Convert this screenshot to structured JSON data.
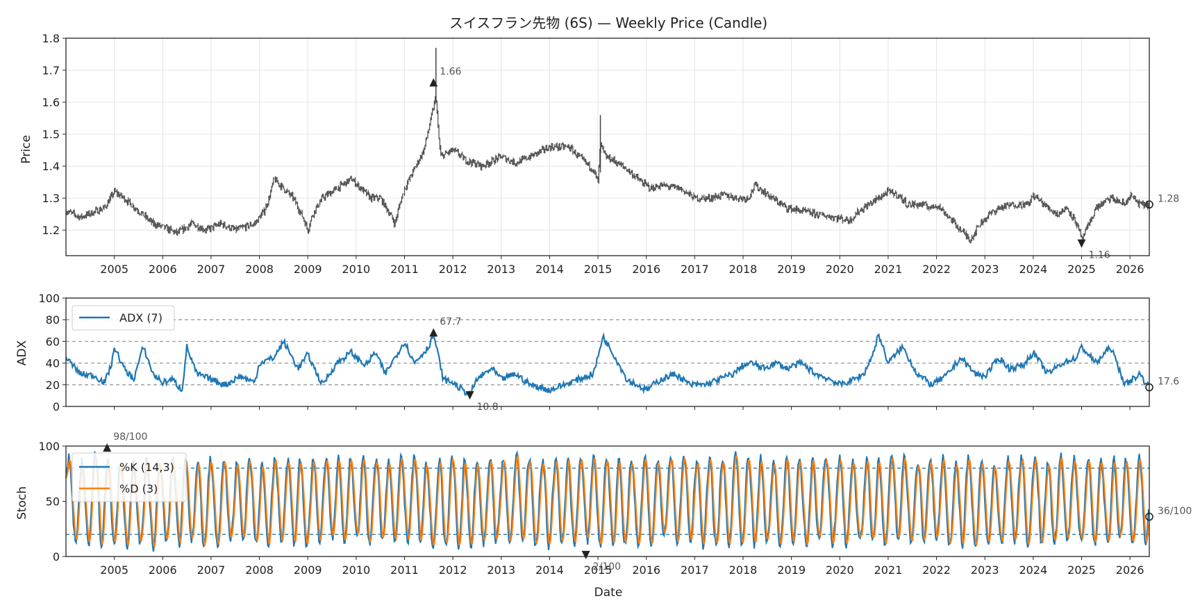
{
  "chart_data": [
    {
      "type": "candlestick",
      "title": "スイスフラン先物 (6S) — Weekly Price (Candle)",
      "ylabel": "Price",
      "xlabel": "",
      "ylim": [
        1.12,
        1.8
      ],
      "yticks": [
        "1.2",
        "1.3",
        "1.4",
        "1.5",
        "1.6",
        "1.7",
        "1.8"
      ],
      "xticks": [
        "2005",
        "2006",
        "2007",
        "2008",
        "2009",
        "2010",
        "2011",
        "2012",
        "2013",
        "2014",
        "2015",
        "2016",
        "2017",
        "2018",
        "2019",
        "2020",
        "2021",
        "2022",
        "2023",
        "2024",
        "2025",
        "2026"
      ],
      "x_range": [
        2004.0,
        2026.4
      ],
      "grid": true,
      "color": "#444444",
      "close_path": [
        [
          2004.0,
          1.26
        ],
        [
          2004.3,
          1.24
        ],
        [
          2004.8,
          1.27
        ],
        [
          2005.0,
          1.32
        ],
        [
          2005.2,
          1.3
        ],
        [
          2005.5,
          1.26
        ],
        [
          2005.8,
          1.22
        ],
        [
          2006.0,
          1.21
        ],
        [
          2006.3,
          1.19
        ],
        [
          2006.6,
          1.22
        ],
        [
          2006.9,
          1.2
        ],
        [
          2007.2,
          1.22
        ],
        [
          2007.5,
          1.2
        ],
        [
          2007.9,
          1.22
        ],
        [
          2008.1,
          1.26
        ],
        [
          2008.2,
          1.3
        ],
        [
          2008.3,
          1.36
        ],
        [
          2008.5,
          1.33
        ],
        [
          2008.7,
          1.3
        ],
        [
          2008.9,
          1.24
        ],
        [
          2009.0,
          1.2
        ],
        [
          2009.1,
          1.25
        ],
        [
          2009.3,
          1.3
        ],
        [
          2009.6,
          1.33
        ],
        [
          2009.9,
          1.36
        ],
        [
          2010.1,
          1.33
        ],
        [
          2010.3,
          1.3
        ],
        [
          2010.5,
          1.3
        ],
        [
          2010.7,
          1.25
        ],
        [
          2010.8,
          1.22
        ],
        [
          2010.9,
          1.28
        ],
        [
          2011.0,
          1.33
        ],
        [
          2011.2,
          1.39
        ],
        [
          2011.4,
          1.45
        ],
        [
          2011.55,
          1.55
        ],
        [
          2011.65,
          1.62
        ],
        [
          2011.7,
          1.5
        ],
        [
          2011.75,
          1.43
        ],
        [
          2012.0,
          1.45
        ],
        [
          2012.1,
          1.44
        ],
        [
          2012.25,
          1.42
        ],
        [
          2012.6,
          1.4
        ],
        [
          2013.0,
          1.43
        ],
        [
          2013.3,
          1.41
        ],
        [
          2013.6,
          1.43
        ],
        [
          2014.0,
          1.46
        ],
        [
          2014.4,
          1.46
        ],
        [
          2014.6,
          1.43
        ],
        [
          2014.9,
          1.39
        ],
        [
          2015.0,
          1.35
        ],
        [
          2015.05,
          1.47
        ],
        [
          2015.15,
          1.43
        ],
        [
          2015.3,
          1.42
        ],
        [
          2015.6,
          1.39
        ],
        [
          2015.9,
          1.35
        ],
        [
          2016.1,
          1.33
        ],
        [
          2016.3,
          1.34
        ],
        [
          2016.7,
          1.33
        ],
        [
          2017.0,
          1.3
        ],
        [
          2017.3,
          1.3
        ],
        [
          2017.6,
          1.31
        ],
        [
          2017.9,
          1.3
        ],
        [
          2018.1,
          1.3
        ],
        [
          2018.25,
          1.34
        ],
        [
          2018.6,
          1.3
        ],
        [
          2018.9,
          1.27
        ],
        [
          2019.2,
          1.26
        ],
        [
          2019.5,
          1.25
        ],
        [
          2019.9,
          1.24
        ],
        [
          2020.2,
          1.23
        ],
        [
          2020.4,
          1.26
        ],
        [
          2020.7,
          1.29
        ],
        [
          2021.0,
          1.32
        ],
        [
          2021.2,
          1.31
        ],
        [
          2021.4,
          1.28
        ],
        [
          2021.7,
          1.28
        ],
        [
          2021.9,
          1.27
        ],
        [
          2022.0,
          1.28
        ],
        [
          2022.2,
          1.25
        ],
        [
          2022.5,
          1.2
        ],
        [
          2022.7,
          1.17
        ],
        [
          2022.9,
          1.22
        ],
        [
          2023.1,
          1.25
        ],
        [
          2023.3,
          1.27
        ],
        [
          2023.6,
          1.28
        ],
        [
          2023.9,
          1.28
        ],
        [
          2024.0,
          1.31
        ],
        [
          2024.3,
          1.27
        ],
        [
          2024.5,
          1.25
        ],
        [
          2024.7,
          1.27
        ],
        [
          2024.9,
          1.22
        ],
        [
          2025.0,
          1.17
        ],
        [
          2025.1,
          1.2
        ],
        [
          2025.3,
          1.27
        ],
        [
          2025.6,
          1.3
        ],
        [
          2025.9,
          1.28
        ],
        [
          2026.0,
          1.31
        ],
        [
          2026.2,
          1.28
        ],
        [
          2026.4,
          1.28
        ]
      ],
      "annotations": [
        {
          "text": "1.66",
          "x": 2011.6,
          "y": 1.66,
          "marker": "max"
        },
        {
          "text": "1.16",
          "x": 2025.0,
          "y": 1.16,
          "marker": "min"
        },
        {
          "text": "1.28",
          "x": 2026.4,
          "y": 1.28,
          "marker": "last"
        }
      ]
    },
    {
      "type": "line",
      "ylabel": "ADX",
      "xlabel": "",
      "ylim": [
        0,
        100
      ],
      "yticks": [
        "0",
        "20",
        "40",
        "60",
        "80",
        "100"
      ],
      "reference_lines": [
        20,
        40,
        60,
        80
      ],
      "series": [
        {
          "name": "ADX (7)",
          "color": "#1f77b4",
          "values": [
            [
              2004.0,
              45
            ],
            [
              2004.3,
              30
            ],
            [
              2004.6,
              28
            ],
            [
              2004.8,
              22
            ],
            [
              2004.95,
              40
            ],
            [
              2005.0,
              55
            ],
            [
              2005.2,
              35
            ],
            [
              2005.4,
              25
            ],
            [
              2005.6,
              55
            ],
            [
              2005.8,
              30
            ],
            [
              2006.0,
              22
            ],
            [
              2006.2,
              25
            ],
            [
              2006.4,
              15
            ],
            [
              2006.5,
              55
            ],
            [
              2006.7,
              30
            ],
            [
              2007.0,
              25
            ],
            [
              2007.3,
              20
            ],
            [
              2007.6,
              28
            ],
            [
              2007.9,
              22
            ],
            [
              2008.0,
              40
            ],
            [
              2008.3,
              45
            ],
            [
              2008.5,
              60
            ],
            [
              2008.8,
              35
            ],
            [
              2009.0,
              48
            ],
            [
              2009.3,
              20
            ],
            [
              2009.6,
              40
            ],
            [
              2009.9,
              50
            ],
            [
              2010.0,
              45
            ],
            [
              2010.2,
              38
            ],
            [
              2010.4,
              50
            ],
            [
              2010.6,
              30
            ],
            [
              2010.8,
              45
            ],
            [
              2011.0,
              60
            ],
            [
              2011.2,
              40
            ],
            [
              2011.5,
              55
            ],
            [
              2011.6,
              67.7
            ],
            [
              2011.8,
              25
            ],
            [
              2012.0,
              22
            ],
            [
              2012.2,
              15
            ],
            [
              2012.35,
              10.8
            ],
            [
              2012.5,
              25
            ],
            [
              2012.8,
              35
            ],
            [
              2013.0,
              25
            ],
            [
              2013.3,
              30
            ],
            [
              2013.6,
              20
            ],
            [
              2014.0,
              15
            ],
            [
              2014.3,
              20
            ],
            [
              2014.6,
              25
            ],
            [
              2014.9,
              30
            ],
            [
              2015.0,
              45
            ],
            [
              2015.1,
              65
            ],
            [
              2015.3,
              50
            ],
            [
              2015.6,
              25
            ],
            [
              2015.8,
              20
            ],
            [
              2016.0,
              15
            ],
            [
              2016.3,
              25
            ],
            [
              2016.6,
              30
            ],
            [
              2016.9,
              20
            ],
            [
              2017.2,
              20
            ],
            [
              2017.5,
              25
            ],
            [
              2017.8,
              30
            ],
            [
              2018.0,
              38
            ],
            [
              2018.2,
              40
            ],
            [
              2018.4,
              35
            ],
            [
              2018.7,
              40
            ],
            [
              2018.9,
              35
            ],
            [
              2019.2,
              40
            ],
            [
              2019.5,
              30
            ],
            [
              2019.8,
              25
            ],
            [
              2020.0,
              20
            ],
            [
              2020.3,
              25
            ],
            [
              2020.5,
              30
            ],
            [
              2020.7,
              50
            ],
            [
              2020.8,
              67
            ],
            [
              2021.0,
              40
            ],
            [
              2021.3,
              55
            ],
            [
              2021.6,
              30
            ],
            [
              2021.9,
              20
            ],
            [
              2022.2,
              28
            ],
            [
              2022.5,
              45
            ],
            [
              2022.8,
              30
            ],
            [
              2023.0,
              28
            ],
            [
              2023.3,
              45
            ],
            [
              2023.5,
              35
            ],
            [
              2023.8,
              38
            ],
            [
              2024.0,
              50
            ],
            [
              2024.3,
              30
            ],
            [
              2024.6,
              40
            ],
            [
              2024.9,
              45
            ],
            [
              2025.0,
              55
            ],
            [
              2025.3,
              40
            ],
            [
              2025.6,
              55
            ],
            [
              2025.9,
              20
            ],
            [
              2026.2,
              30
            ],
            [
              2026.4,
              17.6
            ]
          ]
        }
      ],
      "legend_position": "upper-left",
      "annotations": [
        {
          "text": "67.7",
          "x": 2011.6,
          "y": 67.7,
          "marker": "max"
        },
        {
          "text": "10.8",
          "x": 2012.35,
          "y": 10.8,
          "marker": "min"
        },
        {
          "text": "17.6",
          "x": 2026.4,
          "y": 17.6,
          "marker": "last"
        }
      ]
    },
    {
      "type": "line",
      "ylabel": "Stoch",
      "xlabel": "Date",
      "ylim": [
        0,
        100
      ],
      "yticks": [
        "0",
        "50",
        "100"
      ],
      "reference_lines": [
        20,
        80
      ],
      "series": [
        {
          "name": "%K (14,3)",
          "color": "#1f77b4"
        },
        {
          "name": "%D (3)",
          "color": "#ff7f0e"
        }
      ],
      "legend_position": "upper-left",
      "annotations": [
        {
          "text": "98/100",
          "x": 2004.85,
          "y": 98,
          "marker": "max"
        },
        {
          "text": "2/100",
          "x": 2014.75,
          "y": 2,
          "marker": "min"
        },
        {
          "text": "36/100",
          "x": 2026.4,
          "y": 36,
          "marker": "last"
        }
      ]
    }
  ]
}
